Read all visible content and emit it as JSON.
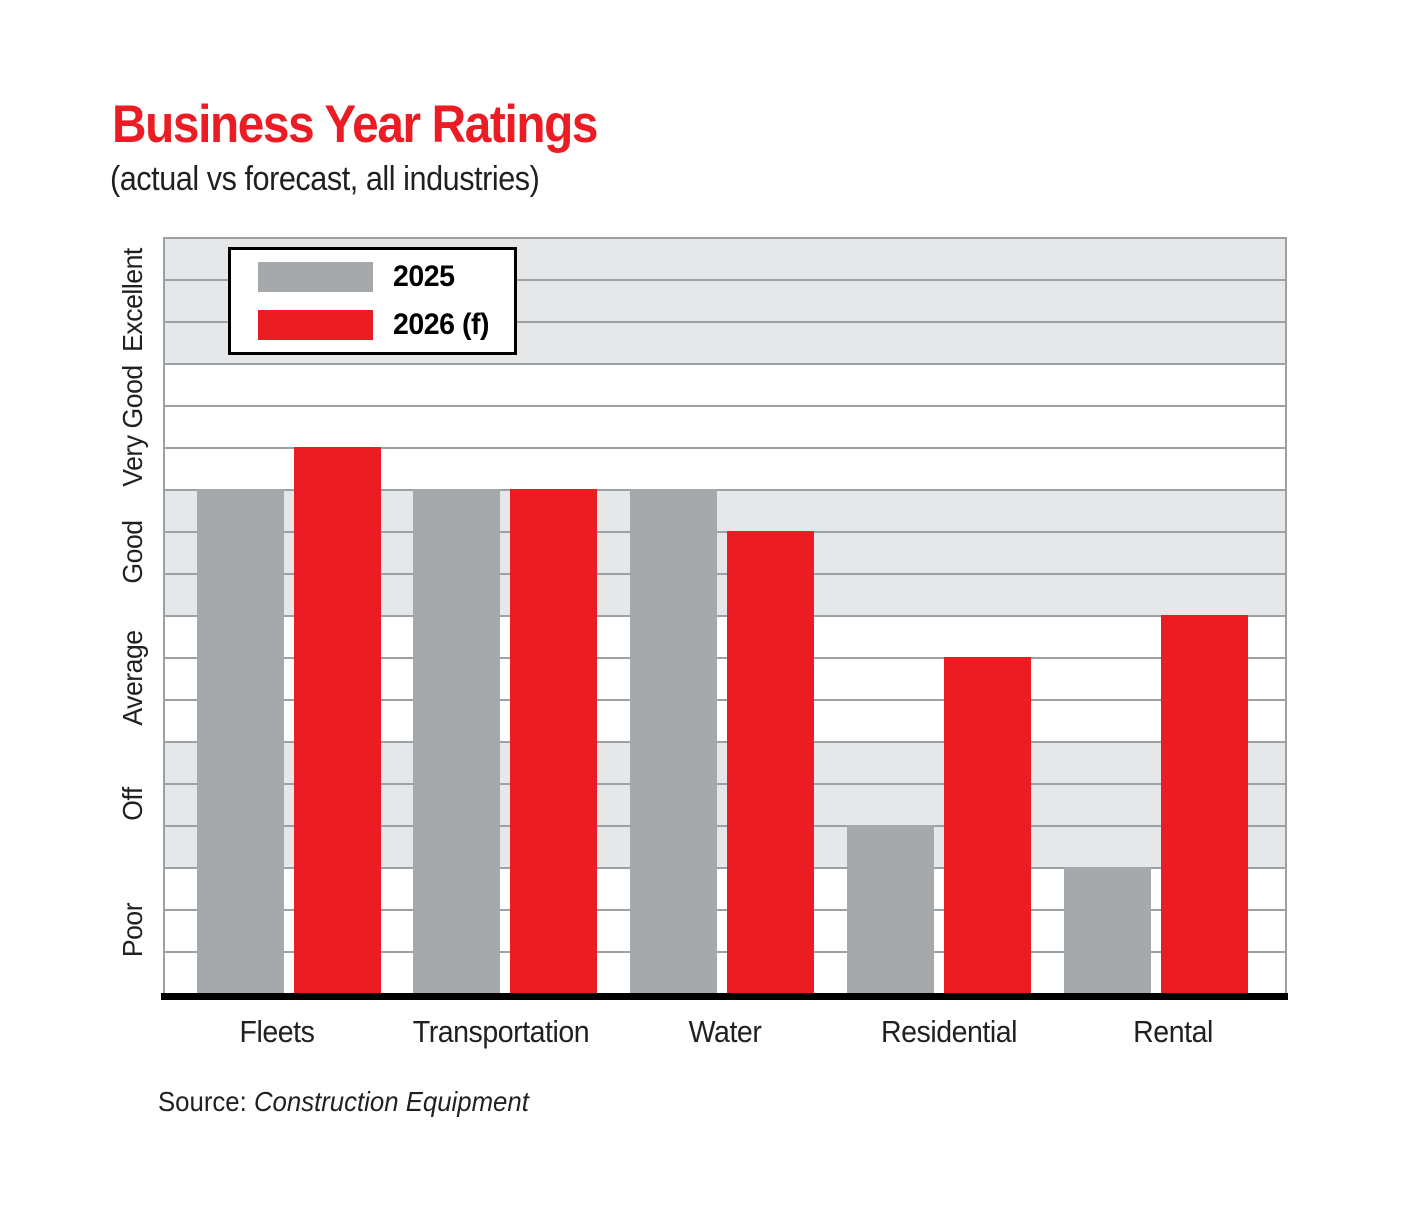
{
  "page": {
    "title": "Business Year Ratings",
    "subtitle": "(actual vs forecast, all industries)",
    "source_label": "Source:",
    "source_name": "Construction Equipment"
  },
  "colors": {
    "accent_red": "#EC1C24",
    "bar_gray": "#A6A9AC",
    "band_gray": "#E6E7E8",
    "gridline": "#9CA1A5",
    "text": "#231F20",
    "axis_black": "#000000",
    "legend_border": "#000000"
  },
  "chart_data": {
    "type": "bar",
    "title": "Business Year Ratings",
    "subtitle": "(actual vs forecast, all industries)",
    "source": "Source: Construction Equipment",
    "categories": [
      "Fleets",
      "Transportation",
      "Water",
      "Residential",
      "Rental"
    ],
    "series": [
      {
        "name": "2025",
        "color": "#A6A9AC",
        "values": [
          4.0,
          4.0,
          4.0,
          1.33,
          1.0
        ]
      },
      {
        "name": "2026 (f)",
        "color": "#EC1C24",
        "values": [
          4.33,
          4.0,
          3.67,
          2.67,
          3.0
        ]
      }
    ],
    "y_axis": {
      "band_labels_top_to_bottom": [
        "Excellent",
        "Very Good",
        "Good",
        "Average",
        "Off",
        "Poor"
      ],
      "ylim": [
        0,
        6
      ],
      "units_note": "1 unit = one rating band (Poor=0-1, Off=1-2, Average=2-3, Good=3-4, Very Good=4-5, Excellent=5-6)",
      "minor_gridlines_per_band": 3,
      "band_shading_top_to_bottom": [
        "gray",
        "white",
        "gray",
        "white",
        "gray",
        "white"
      ]
    },
    "legend": {
      "position": "top-left-inside-plot",
      "entries": [
        "2025",
        "2026 (f)"
      ]
    },
    "grid": true,
    "xlabel": "",
    "ylabel": ""
  }
}
